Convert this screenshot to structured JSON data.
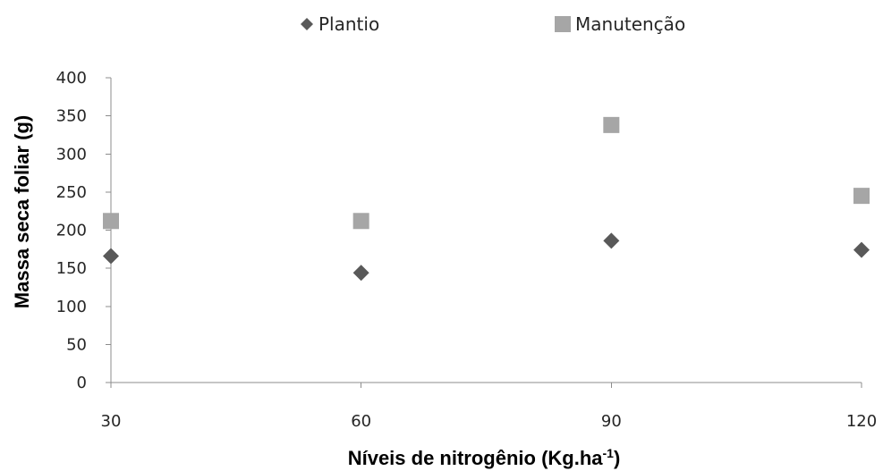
{
  "chart_data": {
    "type": "scatter",
    "title": "",
    "xlabel": "Níveis de nitrogênio (Kg.ha",
    "xlabel_superscript": "-1",
    "xlabel_suffix": ")",
    "ylabel": "Massa seca foliar (g)",
    "x": [
      30,
      60,
      90,
      120
    ],
    "x_ticks": [
      "30",
      "60",
      "90",
      "120"
    ],
    "y_ticks": [
      "0",
      "50",
      "100",
      "150",
      "200",
      "250",
      "300",
      "350",
      "400"
    ],
    "xlim": [
      30,
      120
    ],
    "ylim": [
      0,
      400
    ],
    "grid": false,
    "legend_position": "top",
    "series": [
      {
        "name": "Plantio",
        "marker": "diamond",
        "color": "#595959",
        "values": [
          166,
          144,
          186,
          174
        ]
      },
      {
        "name": "Manutenção",
        "marker": "square",
        "color": "#a6a6a6",
        "values": [
          212,
          212,
          338,
          245
        ]
      }
    ]
  }
}
